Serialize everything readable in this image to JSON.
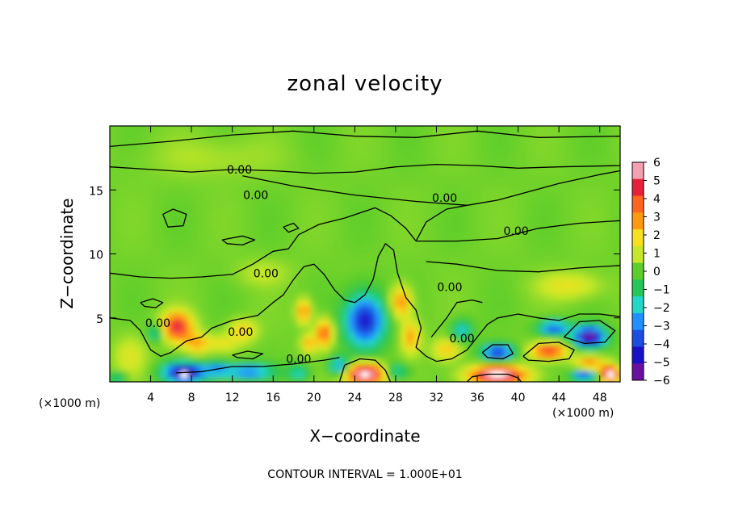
{
  "chart_data": {
    "type": "heatmap",
    "title": "zonal velocity",
    "xlabel": "X−coordinate",
    "ylabel": "Z−coordinate",
    "x_unit_left": "(×1000 m)",
    "x_unit_right": "(×1000 m)",
    "xlim": [
      0,
      50
    ],
    "ylim": [
      0,
      20
    ],
    "x_ticks": [
      4,
      8,
      12,
      16,
      20,
      24,
      28,
      32,
      36,
      40,
      44,
      48
    ],
    "x_tick_labels": [
      "4",
      "8",
      "12",
      "16",
      "20",
      "24",
      "28",
      "32",
      "36",
      "40",
      "44",
      "48"
    ],
    "y_ticks": [
      5,
      10,
      15
    ],
    "y_tick_labels": [
      "5",
      "10",
      "15"
    ],
    "colorbar": {
      "min": -6,
      "max": 6,
      "labels": [
        "6",
        "5",
        "4",
        "3",
        "2",
        "1",
        "0",
        "−1",
        "−2",
        "−3",
        "−4",
        "−5",
        "−6"
      ],
      "colors": [
        "#f5a0b0",
        "#e8203a",
        "#ff6420",
        "#ff9a10",
        "#f6e020",
        "#c6e828",
        "#5ccd2a",
        "#24c55a",
        "#22d6c8",
        "#2090ff",
        "#1b4de0",
        "#1a10c8",
        "#6a10a0"
      ]
    },
    "contour_label": "0.00",
    "contour_interval_text": "CONTOUR INTERVAL = 1.000E+01",
    "blobs": [
      {
        "x": 6.6,
        "z": 4.3,
        "v": 5.0,
        "sx": 1.4,
        "sz": 1.1
      },
      {
        "x": 8.5,
        "z": 3.0,
        "v": 2.5,
        "sx": 1.2,
        "sz": 0.8
      },
      {
        "x": 7.3,
        "z": 0.7,
        "v": -6.5,
        "sx": 1.9,
        "sz": 0.75
      },
      {
        "x": 4.5,
        "z": 3.8,
        "v": -2.5,
        "sx": 0.7,
        "sz": 0.6
      },
      {
        "x": 11.0,
        "z": 3.0,
        "v": 1.5,
        "sx": 1.6,
        "sz": 0.6
      },
      {
        "x": 13.0,
        "z": 4.0,
        "v": 2.2,
        "sx": 1.3,
        "sz": 0.8
      },
      {
        "x": 13.5,
        "z": 0.8,
        "v": -3.5,
        "sx": 2.5,
        "sz": 0.6
      },
      {
        "x": 10.5,
        "z": 1.0,
        "v": -2.5,
        "sx": 1.2,
        "sz": 0.6
      },
      {
        "x": 19.0,
        "z": 5.5,
        "v": 3.2,
        "sx": 0.7,
        "sz": 0.9
      },
      {
        "x": 21.0,
        "z": 3.8,
        "v": 4.0,
        "sx": 0.8,
        "sz": 1.0
      },
      {
        "x": 19.5,
        "z": 3.0,
        "v": 2.5,
        "sx": 0.7,
        "sz": 0.7
      },
      {
        "x": 18.5,
        "z": 0.7,
        "v": -2.2,
        "sx": 1.0,
        "sz": 0.6
      },
      {
        "x": 22.5,
        "z": 1.2,
        "v": -3.5,
        "sx": 1.0,
        "sz": 0.7
      },
      {
        "x": 25.0,
        "z": 4.8,
        "v": -5.2,
        "sx": 1.9,
        "sz": 2.0
      },
      {
        "x": 25.0,
        "z": 0.6,
        "v": 6.5,
        "sx": 2.0,
        "sz": 0.8
      },
      {
        "x": 28.5,
        "z": 6.2,
        "v": 3.2,
        "sx": 1.0,
        "sz": 1.2
      },
      {
        "x": 29.5,
        "z": 3.5,
        "v": 2.8,
        "sx": 0.9,
        "sz": 1.2
      },
      {
        "x": 28.0,
        "z": 0.8,
        "v": -2.5,
        "sx": 1.2,
        "sz": 0.6
      },
      {
        "x": 33.0,
        "z": 2.5,
        "v": 2.2,
        "sx": 1.3,
        "sz": 0.8
      },
      {
        "x": 34.5,
        "z": 4.0,
        "v": -2.5,
        "sx": 1.0,
        "sz": 0.8
      },
      {
        "x": 38.0,
        "z": 2.3,
        "v": -5.0,
        "sx": 1.5,
        "sz": 0.6
      },
      {
        "x": 38.0,
        "z": 0.5,
        "v": 6.5,
        "sx": 2.8,
        "sz": 0.7
      },
      {
        "x": 43.0,
        "z": 2.4,
        "v": 4.6,
        "sx": 1.7,
        "sz": 0.6
      },
      {
        "x": 43.5,
        "z": 4.2,
        "v": -4.0,
        "sx": 1.5,
        "sz": 0.6
      },
      {
        "x": 47.0,
        "z": 3.5,
        "v": -6.5,
        "sx": 1.5,
        "sz": 0.8
      },
      {
        "x": 47.0,
        "z": 1.4,
        "v": 3.0,
        "sx": 1.4,
        "sz": 0.6
      },
      {
        "x": 46.5,
        "z": 0.5,
        "v": -4.5,
        "sx": 1.2,
        "sz": 0.5
      },
      {
        "x": 49.0,
        "z": 0.6,
        "v": 6.5,
        "sx": 0.9,
        "sz": 0.6
      },
      {
        "x": 2.0,
        "z": 2.0,
        "v": 1.2,
        "sx": 1.5,
        "sz": 1.5
      },
      {
        "x": 0.8,
        "z": 0.3,
        "v": -2.5,
        "sx": 0.8,
        "sz": 0.4
      },
      {
        "x": 45.0,
        "z": 7.5,
        "v": 1.5,
        "sx": 3.0,
        "sz": 1.0
      },
      {
        "x": 15.0,
        "z": 8.5,
        "v": 0.8,
        "sx": 2.5,
        "sz": 1.0
      },
      {
        "x": 10.0,
        "z": 17.5,
        "v": 0.6,
        "sx": 6.0,
        "sz": 1.5
      }
    ],
    "contours": [
      [
        [
          0,
          16.8
        ],
        [
          4,
          16.6
        ],
        [
          8,
          16.4
        ],
        [
          12,
          16.6
        ],
        [
          16,
          16.5
        ],
        [
          20,
          16.3
        ],
        [
          24,
          16.4
        ],
        [
          28,
          16.8
        ],
        [
          32,
          17.0
        ],
        [
          36,
          16.9
        ],
        [
          40,
          16.7
        ],
        [
          44,
          16.8
        ],
        [
          50,
          16.9
        ]
      ],
      [
        [
          0,
          18.4
        ],
        [
          6,
          18.8
        ],
        [
          12,
          19.3
        ],
        [
          18,
          19.6
        ],
        [
          24,
          19.2
        ],
        [
          30,
          19.1
        ],
        [
          36,
          19.6
        ],
        [
          42,
          19.1
        ],
        [
          50,
          19.2
        ]
      ],
      [
        [
          13,
          16.1
        ],
        [
          18,
          15.3
        ],
        [
          24,
          14.6
        ],
        [
          30,
          14.1
        ],
        [
          35,
          13.8
        ],
        [
          38,
          14.2
        ],
        [
          44,
          15.5
        ],
        [
          48,
          16.2
        ],
        [
          50,
          16.5
        ]
      ],
      [
        [
          0,
          8.5
        ],
        [
          3,
          8.2
        ],
        [
          6,
          8.1
        ],
        [
          9,
          8.2
        ],
        [
          12,
          8.4
        ],
        [
          14,
          9.2
        ],
        [
          16,
          10.2
        ],
        [
          17.5,
          10.4
        ],
        [
          18.5,
          11.5
        ],
        [
          20.5,
          12.3
        ],
        [
          23,
          12.8
        ],
        [
          26,
          13.6
        ],
        [
          27.5,
          13.0
        ],
        [
          29,
          12.0
        ],
        [
          30,
          11.0
        ]
      ],
      [
        [
          30,
          11.0
        ],
        [
          31,
          12.5
        ],
        [
          33,
          13.5
        ],
        [
          35,
          13.8
        ]
      ],
      [
        [
          30,
          11.0
        ],
        [
          34,
          11.0
        ],
        [
          38,
          11.2
        ],
        [
          42,
          12.0
        ],
        [
          46,
          12.4
        ],
        [
          50,
          12.6
        ]
      ],
      [
        [
          31,
          9.4
        ],
        [
          34,
          9.2
        ],
        [
          38,
          8.7
        ],
        [
          42,
          8.6
        ],
        [
          46,
          8.9
        ],
        [
          50,
          9.1
        ]
      ],
      [
        [
          0,
          5.0
        ],
        [
          2,
          4.8
        ],
        [
          3,
          4.0
        ],
        [
          4,
          2.5
        ],
        [
          5,
          2.0
        ],
        [
          6,
          2.3
        ],
        [
          7.5,
          3.2
        ],
        [
          9,
          3.5
        ],
        [
          10,
          4.2
        ],
        [
          12,
          4.8
        ],
        [
          14.5,
          5.2
        ],
        [
          16,
          6.2
        ],
        [
          17,
          6.8
        ],
        [
          18,
          8.0
        ],
        [
          19,
          9.0
        ],
        [
          20,
          9.2
        ],
        [
          21,
          8.4
        ],
        [
          22,
          7.2
        ],
        [
          23,
          6.4
        ],
        [
          24,
          6.2
        ],
        [
          25,
          6.8
        ],
        [
          25.8,
          8.0
        ],
        [
          26.3,
          9.8
        ],
        [
          27,
          10.8
        ],
        [
          27.8,
          10.3
        ],
        [
          28.2,
          8.5
        ],
        [
          29,
          6.6
        ],
        [
          30,
          5.6
        ],
        [
          30.5,
          4.2
        ],
        [
          30,
          2.7
        ],
        [
          31,
          2.0
        ],
        [
          32,
          1.6
        ]
      ],
      [
        [
          31.5,
          3.5
        ],
        [
          33,
          5.0
        ],
        [
          34,
          6.2
        ],
        [
          35.5,
          6.4
        ],
        [
          36.5,
          6.2
        ]
      ],
      [
        [
          32,
          1.6
        ],
        [
          33.5,
          1.8
        ],
        [
          35,
          2.5
        ],
        [
          36,
          3.5
        ],
        [
          37,
          4.5
        ],
        [
          38,
          5.0
        ],
        [
          40,
          5.3
        ],
        [
          42,
          5.0
        ],
        [
          44,
          4.8
        ],
        [
          46,
          5.3
        ],
        [
          48,
          5.3
        ],
        [
          50,
          5.1
        ]
      ],
      [
        [
          6.5,
          0.7
        ],
        [
          9,
          0.8
        ],
        [
          12,
          1.2
        ],
        [
          15,
          1.2
        ],
        [
          18,
          1.4
        ],
        [
          21,
          1.7
        ],
        [
          22.5,
          1.9
        ]
      ],
      [
        [
          22.5,
          0.0
        ],
        [
          23,
          1.3
        ],
        [
          24.5,
          1.8
        ],
        [
          26,
          1.7
        ],
        [
          27,
          0.9
        ],
        [
          27.5,
          0.0
        ]
      ],
      [
        [
          35,
          0.0
        ],
        [
          35.5,
          0.4
        ],
        [
          37,
          0.6
        ],
        [
          39,
          0.6
        ],
        [
          40,
          0.3
        ],
        [
          40.3,
          0.0
        ]
      ],
      [
        [
          40.5,
          2.0
        ],
        [
          42,
          3.0
        ],
        [
          44,
          3.1
        ],
        [
          45.5,
          2.5
        ],
        [
          45,
          1.8
        ],
        [
          43,
          1.6
        ],
        [
          41,
          1.7
        ],
        [
          40.5,
          2.0
        ]
      ],
      [
        [
          44.5,
          3.5
        ],
        [
          46,
          4.7
        ],
        [
          48,
          4.8
        ],
        [
          49.5,
          4.0
        ],
        [
          48.5,
          3.1
        ],
        [
          46.5,
          3.0
        ],
        [
          44.5,
          3.5
        ]
      ],
      [
        [
          36.5,
          2.3
        ],
        [
          37.5,
          2.9
        ],
        [
          39,
          2.9
        ],
        [
          39.5,
          2.2
        ],
        [
          38.5,
          1.8
        ],
        [
          37,
          1.9
        ],
        [
          36.5,
          2.3
        ]
      ],
      [
        [
          5.2,
          13.1
        ],
        [
          6.2,
          13.5
        ],
        [
          7.5,
          13.1
        ],
        [
          7.2,
          12.2
        ],
        [
          5.7,
          12.1
        ],
        [
          5.2,
          13.1
        ]
      ],
      [
        [
          11,
          11.1
        ],
        [
          13,
          11.4
        ],
        [
          14.2,
          11.1
        ],
        [
          13,
          10.7
        ],
        [
          11.5,
          10.8
        ],
        [
          11,
          11.1
        ]
      ],
      [
        [
          17,
          12.1
        ],
        [
          18,
          12.4
        ],
        [
          18.5,
          12.0
        ],
        [
          17.5,
          11.7
        ],
        [
          17,
          12.1
        ]
      ],
      [
        [
          3,
          6.2
        ],
        [
          4.2,
          6.5
        ],
        [
          5.2,
          6.2
        ],
        [
          4.5,
          5.8
        ],
        [
          3.4,
          5.9
        ],
        [
          3,
          6.2
        ]
      ],
      [
        [
          12,
          2.1
        ],
        [
          13.5,
          2.4
        ],
        [
          15,
          2.2
        ],
        [
          14,
          1.8
        ],
        [
          12.5,
          1.9
        ],
        [
          12,
          2.1
        ]
      ]
    ],
    "contour_label_positions": [
      [
        12.7,
        16.6
      ],
      [
        14.3,
        14.6
      ],
      [
        15.3,
        8.5
      ],
      [
        4.7,
        4.6
      ],
      [
        12.8,
        3.9
      ],
      [
        18.5,
        1.8
      ],
      [
        32.8,
        14.4
      ],
      [
        39.8,
        11.8
      ],
      [
        33.3,
        7.4
      ],
      [
        34.5,
        3.4
      ]
    ]
  }
}
